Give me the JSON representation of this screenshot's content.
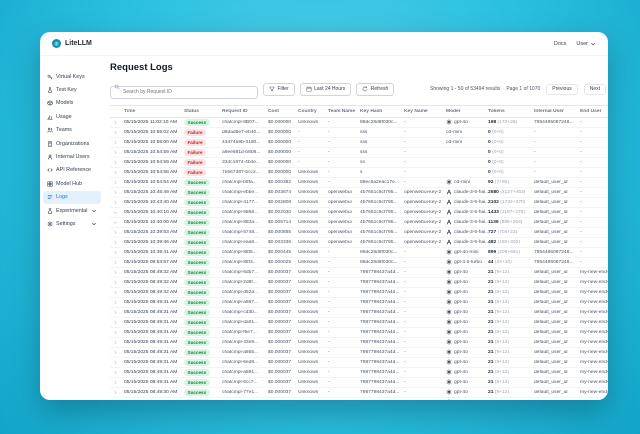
{
  "accent_colors": {
    "brand_teal": "#0e90b3",
    "active_blue": "#1d74d4",
    "success_green": "#15803d",
    "failure_red": "#c0262c",
    "background_cyan": "#2cc0e0"
  },
  "topbar": {
    "brand": "LiteLLM",
    "docs_link": "Docs",
    "user_menu": "User"
  },
  "sidebar": {
    "items": [
      {
        "label": "Virtual Keys",
        "icon": "key",
        "active": false,
        "chevron": false
      },
      {
        "label": "Test Key",
        "icon": "flask",
        "active": false,
        "chevron": false
      },
      {
        "label": "Models",
        "icon": "cube",
        "active": false,
        "chevron": false
      },
      {
        "label": "Usage",
        "icon": "chart",
        "active": false,
        "chevron": false
      },
      {
        "label": "Teams",
        "icon": "users",
        "active": false,
        "chevron": false
      },
      {
        "label": "Organizations",
        "icon": "building",
        "active": false,
        "chevron": false
      },
      {
        "label": "Internal Users",
        "icon": "user",
        "active": false,
        "chevron": false
      },
      {
        "label": "API Reference",
        "icon": "code",
        "active": false,
        "chevron": false
      },
      {
        "label": "Model Hub",
        "icon": "grid",
        "active": false,
        "chevron": false
      },
      {
        "label": "Logs",
        "icon": "logs",
        "active": true,
        "chevron": false
      },
      {
        "label": "Experimental",
        "icon": "beaker",
        "active": false,
        "chevron": true
      },
      {
        "label": "Settings",
        "icon": "gear",
        "active": false,
        "chevron": true
      }
    ]
  },
  "page": {
    "title": "Request Logs"
  },
  "toolbar": {
    "search_placeholder": "Search by Request ID",
    "filter_label": "Filter",
    "range_label": "Last 24 Hours",
    "refresh_label": "Refresh",
    "showing_text": "Showing 1 - 50 of 53494 results",
    "page_text": "Page 1 of 1070",
    "previous_label": "Previous",
    "next_label": "Next"
  },
  "table": {
    "columns": [
      "",
      "Time",
      "Status",
      "Request ID",
      "Cost",
      "Country",
      "Team Name",
      "Key Hash",
      "Key Name",
      "Model",
      "Tokens",
      "Internal User",
      "End User"
    ],
    "rows": [
      {
        "expanded": false,
        "time": "05/15/2025 11:02:10 AM",
        "status": "Success",
        "request_id": "chatcmpl-8B07...",
        "cost": "$0.000000",
        "country": "Unknown",
        "team": "-",
        "key_hash": "88dc28d8f030c...",
        "key_name": "-",
        "provider": "openai",
        "model": "gpt-4o",
        "tokens": "198",
        "tokens_detail": "(172+26)",
        "internal_user": "7854485087248...",
        "end_user": "-"
      },
      {
        "expanded": false,
        "time": "05/15/2025 10:55:02 AM",
        "status": "Failure",
        "request_id": "d8dad5e7-eb40...",
        "cost": "$0.000000",
        "country": "-",
        "team": "-",
        "key_hash": "sss",
        "key_name": "-",
        "provider": "",
        "model": "o3-mini",
        "tokens": "0",
        "tokens_detail": "(0+0)",
        "internal_user": "-",
        "end_user": "-"
      },
      {
        "expanded": false,
        "time": "05/15/2025 10:55:00 AM",
        "status": "Failure",
        "request_id": "43474a9b-3180...",
        "cost": "$0.000000",
        "country": "-",
        "team": "-",
        "key_hash": "sss",
        "key_name": "-",
        "provider": "",
        "model": "o3-mini",
        "tokens": "0",
        "tokens_detail": "(0+0)",
        "internal_user": "-",
        "end_user": "-"
      },
      {
        "expanded": false,
        "time": "05/15/2025 10:54:59 AM",
        "status": "Failure",
        "request_id": "a9ee681d-b8b8...",
        "cost": "$0.000000",
        "country": "-",
        "team": "-",
        "key_hash": "sss",
        "key_name": "-",
        "provider": "",
        "model": "",
        "tokens": "0",
        "tokens_detail": "(0+0)",
        "internal_user": "-",
        "end_user": "-"
      },
      {
        "expanded": false,
        "time": "05/15/2025 10:54:59 AM",
        "status": "Failure",
        "request_id": "334c1874-4b4e...",
        "cost": "$0.000000",
        "country": "-",
        "team": "-",
        "key_hash": "ss",
        "key_name": "-",
        "provider": "",
        "model": "",
        "tokens": "0",
        "tokens_detail": "(0+0)",
        "internal_user": "-",
        "end_user": "-"
      },
      {
        "expanded": false,
        "time": "05/15/2025 10:54:58 AM",
        "status": "Failure",
        "request_id": "7eb67387-bcc2...",
        "cost": "$0.000000",
        "country": "Unknown",
        "team": "-",
        "key_hash": "s",
        "key_name": "-",
        "provider": "",
        "model": "",
        "tokens": "0",
        "tokens_detail": "(0+0)",
        "internal_user": "-",
        "end_user": "-"
      },
      {
        "expanded": false,
        "time": "05/15/2025 10:54:54 AM",
        "status": "Success",
        "request_id": "chatcmpl-b8fa...",
        "cost": "$0.000382",
        "country": "Unknown",
        "team": "-",
        "key_hash": "88ec5a2eac17e...",
        "key_name": "-",
        "provider": "openai",
        "model": "o3-mini",
        "tokens": "92",
        "tokens_detail": "(7+85)",
        "internal_user": "default_user_id",
        "end_user": "-"
      },
      {
        "expanded": false,
        "time": "05/15/2025 10:45:49 AM",
        "status": "Success",
        "request_id": "chatcmpl-ebbe...",
        "cost": "$0.003874",
        "country": "Unknown",
        "team": "openwebui",
        "key_hash": "4b7651c6cf795...",
        "key_name": "openwebui-key-2",
        "provider": "anthropic",
        "model": "claude-3-5-hai...",
        "tokens": "2580",
        "tokens_detail": "(2127+453)",
        "internal_user": "default_user_id",
        "end_user": "-"
      },
      {
        "expanded": false,
        "time": "05/15/2025 10:43:40 AM",
        "status": "Success",
        "request_id": "chatcmpl-4177...",
        "cost": "$0.002808",
        "country": "Unknown",
        "team": "openwebui",
        "key_hash": "4b7651c6cf795...",
        "key_name": "openwebui-key-2",
        "provider": "anthropic",
        "model": "claude-3-5-hai...",
        "tokens": "2102",
        "tokens_detail": "(1732+370)",
        "internal_user": "default_user_id",
        "end_user": "-"
      },
      {
        "expanded": true,
        "time": "05/15/2025 10:40:10 AM",
        "status": "Success",
        "request_id": "chatcmpl-5858...",
        "cost": "$0.002030",
        "country": "Unknown",
        "team": "openwebui",
        "key_hash": "4b7651c6cf795...",
        "key_name": "openwebui-key-2",
        "provider": "anthropic",
        "model": "claude-3-5-hai...",
        "tokens": "1433",
        "tokens_detail": "(1157+276)",
        "internal_user": "default_user_id",
        "end_user": "-"
      },
      {
        "expanded": true,
        "time": "05/15/2025 10:40:00 AM",
        "status": "Success",
        "request_id": "chatcmpl-883a...",
        "cost": "$0.005714",
        "country": "Unknown",
        "team": "openwebui",
        "key_hash": "4b7651c6cf795...",
        "key_name": "openwebui-key-2",
        "provider": "anthropic",
        "model": "claude-3-5-hai...",
        "tokens": "1139",
        "tokens_detail": "(885+254)",
        "internal_user": "default_user_id",
        "end_user": "-"
      },
      {
        "expanded": false,
        "time": "05/15/2025 10:39:53 AM",
        "status": "Success",
        "request_id": "chatcmpl-5748...",
        "cost": "$0.000855",
        "country": "Unknown",
        "team": "openwebui",
        "key_hash": "4b7651c6cf795...",
        "key_name": "openwebui-key-2",
        "provider": "anthropic",
        "model": "claude-3-5-hai...",
        "tokens": "727",
        "tokens_detail": "(704+23)",
        "internal_user": "default_user_id",
        "end_user": "-"
      },
      {
        "expanded": false,
        "time": "05/15/2025 10:39:46 AM",
        "status": "Success",
        "request_id": "chatcmpl-eaa8...",
        "cost": "$0.003336",
        "country": "Unknown",
        "team": "openwebui",
        "key_hash": "4b7651c6cf795...",
        "key_name": "openwebui-key-2",
        "provider": "anthropic",
        "model": "claude-3-5-hai...",
        "tokens": "482",
        "tokens_detail": "(180+302)",
        "internal_user": "default_user_id",
        "end_user": "-"
      },
      {
        "expanded": false,
        "time": "05/15/2025 10:38:41 AM",
        "status": "Success",
        "request_id": "chatcmpl-88f5...",
        "cost": "$0.000445",
        "country": "Unknown",
        "team": "-",
        "key_hash": "88dc28d8f030c...",
        "key_name": "-",
        "provider": "openai",
        "model": "gpt-4o-mini",
        "tokens": "899",
        "tokens_detail": "(208+691)",
        "internal_user": "7854485087248...",
        "end_user": "-"
      },
      {
        "expanded": false,
        "time": "05/15/2025 09:53:57 AM",
        "status": "Success",
        "request_id": "chatcmpl-88f3...",
        "cost": "$0.000025",
        "country": "Unknown",
        "team": "-",
        "key_hash": "88dc28d8f030c...",
        "key_name": "-",
        "provider": "openai",
        "model": "gpt-3.5-turbo",
        "tokens": "44",
        "tokens_detail": "(34+10)",
        "internal_user": "7854485087248...",
        "end_user": "-"
      },
      {
        "expanded": false,
        "time": "05/15/2025 08:49:32 AM",
        "status": "Success",
        "request_id": "chatcmpl-6db7...",
        "cost": "$0.000037",
        "country": "Unknown",
        "team": "-",
        "key_hash": "7987798437a4d...",
        "key_name": "-",
        "provider": "openai",
        "model": "gpt-4o",
        "tokens": "21",
        "tokens_detail": "(9+12)",
        "internal_user": "default_user_id",
        "end_user": "my-new-end-user-5"
      },
      {
        "expanded": false,
        "time": "05/15/2025 08:49:32 AM",
        "status": "Success",
        "request_id": "chatcmpl-2d8f...",
        "cost": "$0.000037",
        "country": "Unknown",
        "team": "-",
        "key_hash": "7987798437a4d...",
        "key_name": "-",
        "provider": "openai",
        "model": "gpt-4o",
        "tokens": "21",
        "tokens_detail": "(9+12)",
        "internal_user": "default_user_id",
        "end_user": "my-new-end-user-5"
      },
      {
        "expanded": false,
        "time": "05/15/2025 08:49:32 AM",
        "status": "Success",
        "request_id": "chatcmpl-d52a...",
        "cost": "$0.000037",
        "country": "Unknown",
        "team": "-",
        "key_hash": "7987798437a4d...",
        "key_name": "-",
        "provider": "openai",
        "model": "gpt-4o",
        "tokens": "21",
        "tokens_detail": "(9+12)",
        "internal_user": "default_user_id",
        "end_user": "my-new-end-user-5"
      },
      {
        "expanded": false,
        "time": "05/15/2025 08:49:31 AM",
        "status": "Success",
        "request_id": "chatcmpl-a887...",
        "cost": "$0.000037",
        "country": "Unknown",
        "team": "-",
        "key_hash": "7987798437a4d...",
        "key_name": "-",
        "provider": "openai",
        "model": "gpt-4o",
        "tokens": "21",
        "tokens_detail": "(9+12)",
        "internal_user": "default_user_id",
        "end_user": "my-new-end-user-5"
      },
      {
        "expanded": false,
        "time": "05/15/2025 08:49:31 AM",
        "status": "Success",
        "request_id": "chatcmpl-cd3b...",
        "cost": "$0.000037",
        "country": "Unknown",
        "team": "-",
        "key_hash": "7987798437a4d...",
        "key_name": "-",
        "provider": "openai",
        "model": "gpt-4o",
        "tokens": "21",
        "tokens_detail": "(9+12)",
        "internal_user": "default_user_id",
        "end_user": "my-new-end-user-5"
      },
      {
        "expanded": false,
        "time": "05/15/2025 08:49:31 AM",
        "status": "Success",
        "request_id": "chatcmpl-da01...",
        "cost": "$0.000037",
        "country": "Unknown",
        "team": "-",
        "key_hash": "7987798437a4d...",
        "key_name": "-",
        "provider": "openai",
        "model": "gpt-4o",
        "tokens": "21",
        "tokens_detail": "(9+12)",
        "internal_user": "default_user_id",
        "end_user": "my-new-end-user-5"
      },
      {
        "expanded": false,
        "time": "05/15/2025 08:49:31 AM",
        "status": "Success",
        "request_id": "chatcmpl-f5e7...",
        "cost": "$0.000037",
        "country": "Unknown",
        "team": "-",
        "key_hash": "7987798437a4d...",
        "key_name": "-",
        "provider": "openai",
        "model": "gpt-4o",
        "tokens": "21",
        "tokens_detail": "(9+12)",
        "internal_user": "default_user_id",
        "end_user": "my-new-end-user-5"
      },
      {
        "expanded": false,
        "time": "05/15/2025 08:49:31 AM",
        "status": "Success",
        "request_id": "chatcmpl-43e9...",
        "cost": "$0.000037",
        "country": "Unknown",
        "team": "-",
        "key_hash": "7987798437a4d...",
        "key_name": "-",
        "provider": "openai",
        "model": "gpt-4o",
        "tokens": "21",
        "tokens_detail": "(9+12)",
        "internal_user": "default_user_id",
        "end_user": "my-new-end-user-5"
      },
      {
        "expanded": false,
        "time": "05/15/2025 08:49:31 AM",
        "status": "Success",
        "request_id": "chatcmpl-a865...",
        "cost": "$0.000037",
        "country": "Unknown",
        "team": "-",
        "key_hash": "7987798437a4d...",
        "key_name": "-",
        "provider": "openai",
        "model": "gpt-4o",
        "tokens": "21",
        "tokens_detail": "(9+12)",
        "internal_user": "default_user_id",
        "end_user": "my-new-end-user-5"
      },
      {
        "expanded": false,
        "time": "05/15/2025 08:49:31 AM",
        "status": "Success",
        "request_id": "chatcmpl-6ed8...",
        "cost": "$0.000037",
        "country": "Unknown",
        "team": "-",
        "key_hash": "7987798437a4d...",
        "key_name": "-",
        "provider": "openai",
        "model": "gpt-4o",
        "tokens": "21",
        "tokens_detail": "(9+12)",
        "internal_user": "default_user_id",
        "end_user": "my-new-end-user-5"
      },
      {
        "expanded": false,
        "time": "05/15/2025 08:49:31 AM",
        "status": "Success",
        "request_id": "chatcmpl-a891...",
        "cost": "$0.000037",
        "country": "Unknown",
        "team": "-",
        "key_hash": "7987798437a4d...",
        "key_name": "-",
        "provider": "openai",
        "model": "gpt-4o",
        "tokens": "21",
        "tokens_detail": "(9+12)",
        "internal_user": "default_user_id",
        "end_user": "my-new-end-user-5"
      },
      {
        "expanded": false,
        "time": "05/15/2025 08:49:31 AM",
        "status": "Success",
        "request_id": "chatcmpl-6cc7...",
        "cost": "$0.000037",
        "country": "Unknown",
        "team": "-",
        "key_hash": "7987798437a4d...",
        "key_name": "-",
        "provider": "openai",
        "model": "gpt-4o",
        "tokens": "21",
        "tokens_detail": "(9+12)",
        "internal_user": "default_user_id",
        "end_user": "my-new-end-user-5"
      },
      {
        "expanded": false,
        "time": "05/15/2025 08:49:30 AM",
        "status": "Success",
        "request_id": "chatcmpl-77e1...",
        "cost": "$0.000037",
        "country": "Unknown",
        "team": "-",
        "key_hash": "7987798437a4d...",
        "key_name": "-",
        "provider": "openai",
        "model": "gpt-4o",
        "tokens": "21",
        "tokens_detail": "(9+12)",
        "internal_user": "default_user_id",
        "end_user": "my-new-end-user-5"
      },
      {
        "expanded": false,
        "time": "05/15/2025 08:49:30 AM",
        "status": "Success",
        "request_id": "chatcmpl-8968...",
        "cost": "$0.000037",
        "country": "Unknown",
        "team": "-",
        "key_hash": "7987798437a4d...",
        "key_name": "-",
        "provider": "openai",
        "model": "gpt-4o",
        "tokens": "21",
        "tokens_detail": "(9+12)",
        "internal_user": "default_user_id",
        "end_user": "my-new-end-user-5"
      },
      {
        "expanded": false,
        "time": "05/15/2025 08:49:30 AM",
        "status": "Success",
        "request_id": "chatcmpl-e777...",
        "cost": "$0.000037",
        "country": "Unknown",
        "team": "-",
        "key_hash": "7987798437a4d...",
        "key_name": "-",
        "provider": "openai",
        "model": "gpt-4o",
        "tokens": "21",
        "tokens_detail": "(9+12)",
        "internal_user": "default_user_id",
        "end_user": "my-new-end-user-5"
      }
    ]
  }
}
